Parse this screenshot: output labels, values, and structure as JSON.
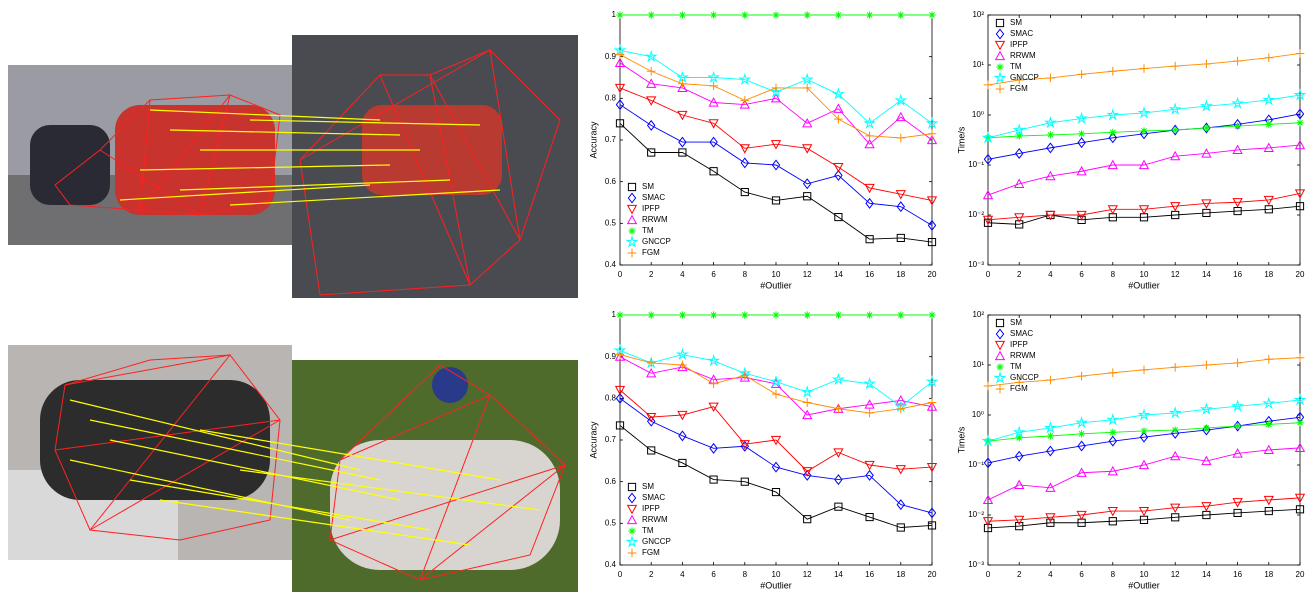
{
  "chart_data": [
    {
      "type": "line",
      "xlabel": "#Outlier",
      "ylabel": "Accuracy",
      "x": [
        0,
        2,
        4,
        6,
        8,
        10,
        12,
        14,
        16,
        18,
        20
      ],
      "xlim": [
        0,
        20
      ],
      "xticks": [
        0,
        2,
        4,
        6,
        8,
        10,
        12,
        14,
        16,
        18,
        20
      ],
      "ylim": [
        0.4,
        1
      ],
      "yticks": [
        0.4,
        0.5,
        0.6,
        0.7,
        0.8,
        0.9,
        1
      ],
      "log": false,
      "legend": "lower left",
      "series": [
        {
          "name": "SM",
          "color": "#000000",
          "marker": "square",
          "values": [
            0.74,
            0.67,
            0.67,
            0.625,
            0.575,
            0.555,
            0.565,
            0.515,
            0.462,
            0.465,
            0.455
          ]
        },
        {
          "name": "SMAC",
          "color": "#0000ff",
          "marker": "diamond",
          "values": [
            0.785,
            0.735,
            0.695,
            0.695,
            0.645,
            0.64,
            0.595,
            0.615,
            0.548,
            0.54,
            0.495
          ]
        },
        {
          "name": "IPFP",
          "color": "#ff0000",
          "marker": "triangle-down",
          "values": [
            0.825,
            0.795,
            0.76,
            0.74,
            0.68,
            0.69,
            0.68,
            0.635,
            0.585,
            0.57,
            0.555
          ]
        },
        {
          "name": "RRWM",
          "color": "#ff00ff",
          "marker": "triangle-up",
          "values": [
            0.885,
            0.835,
            0.825,
            0.79,
            0.785,
            0.8,
            0.74,
            0.775,
            0.69,
            0.755,
            0.7
          ]
        },
        {
          "name": "TM",
          "color": "#00ff00",
          "marker": "asterisk",
          "values": [
            1,
            1,
            1,
            1,
            1,
            1,
            1,
            1,
            1,
            1,
            1
          ]
        },
        {
          "name": "GNCCP",
          "color": "#00ffff",
          "marker": "star",
          "values": [
            0.915,
            0.9,
            0.85,
            0.85,
            0.845,
            0.815,
            0.845,
            0.81,
            0.74,
            0.795,
            0.74
          ]
        },
        {
          "name": "FGM",
          "color": "#ff8c00",
          "marker": "plus",
          "values": [
            0.905,
            0.865,
            0.835,
            0.83,
            0.795,
            0.825,
            0.825,
            0.75,
            0.71,
            0.705,
            0.715
          ]
        }
      ]
    },
    {
      "type": "line",
      "xlabel": "#Outlier",
      "ylabel": "Time/s",
      "x": [
        0,
        2,
        4,
        6,
        8,
        10,
        12,
        14,
        16,
        18,
        20
      ],
      "xlim": [
        0,
        20
      ],
      "xticks": [
        0,
        2,
        4,
        6,
        8,
        10,
        12,
        14,
        16,
        18,
        20
      ],
      "ylim": [
        0.001,
        100
      ],
      "yticks": [
        {
          "value": 0.001,
          "label": "10⁻³"
        },
        {
          "value": 0.01,
          "label": "10⁻²"
        },
        {
          "value": 0.1,
          "label": "10⁻¹"
        },
        {
          "value": 1,
          "label": "10⁰"
        },
        {
          "value": 10,
          "label": "10¹"
        },
        {
          "value": 100,
          "label": "10²"
        }
      ],
      "log": true,
      "legend": "upper left",
      "series": [
        {
          "name": "SM",
          "color": "#000000",
          "marker": "square",
          "values": [
            0.007,
            0.0065,
            0.01,
            0.008,
            0.009,
            0.009,
            0.01,
            0.011,
            0.012,
            0.013,
            0.015
          ]
        },
        {
          "name": "SMAC",
          "color": "#0000ff",
          "marker": "diamond",
          "values": [
            0.13,
            0.17,
            0.22,
            0.28,
            0.35,
            0.42,
            0.5,
            0.55,
            0.65,
            0.8,
            1.05
          ]
        },
        {
          "name": "IPFP",
          "color": "#ff0000",
          "marker": "triangle-down",
          "values": [
            0.008,
            0.009,
            0.01,
            0.01,
            0.013,
            0.013,
            0.015,
            0.017,
            0.018,
            0.02,
            0.027
          ]
        },
        {
          "name": "RRWM",
          "color": "#ff00ff",
          "marker": "triangle-up",
          "values": [
            0.025,
            0.042,
            0.06,
            0.075,
            0.1,
            0.1,
            0.15,
            0.17,
            0.2,
            0.22,
            0.25
          ]
        },
        {
          "name": "TM",
          "color": "#00ff00",
          "marker": "asterisk",
          "values": [
            0.35,
            0.38,
            0.4,
            0.42,
            0.45,
            0.48,
            0.5,
            0.55,
            0.6,
            0.65,
            0.7
          ]
        },
        {
          "name": "GNCCP",
          "color": "#00ffff",
          "marker": "star",
          "values": [
            0.35,
            0.5,
            0.7,
            0.85,
            1,
            1.1,
            1.3,
            1.5,
            1.7,
            2,
            2.5
          ]
        },
        {
          "name": "FGM",
          "color": "#ff8c00",
          "marker": "plus",
          "values": [
            4,
            5,
            5.5,
            6.5,
            7.5,
            8.5,
            9.5,
            10.5,
            12,
            14,
            17
          ]
        }
      ]
    },
    {
      "type": "line",
      "xlabel": "#Outlier",
      "ylabel": "Accuracy",
      "x": [
        0,
        2,
        4,
        6,
        8,
        10,
        12,
        14,
        16,
        18,
        20
      ],
      "xlim": [
        0,
        20
      ],
      "xticks": [
        0,
        2,
        4,
        6,
        8,
        10,
        12,
        14,
        16,
        18,
        20
      ],
      "ylim": [
        0.4,
        1
      ],
      "yticks": [
        0.4,
        0.5,
        0.6,
        0.7,
        0.8,
        0.9,
        1
      ],
      "log": false,
      "legend": "lower left",
      "series": [
        {
          "name": "SM",
          "color": "#000000",
          "marker": "square",
          "values": [
            0.735,
            0.675,
            0.645,
            0.605,
            0.6,
            0.575,
            0.51,
            0.54,
            0.515,
            0.49,
            0.495
          ]
        },
        {
          "name": "SMAC",
          "color": "#0000ff",
          "marker": "diamond",
          "values": [
            0.8,
            0.745,
            0.71,
            0.68,
            0.685,
            0.635,
            0.615,
            0.605,
            0.615,
            0.545,
            0.525
          ]
        },
        {
          "name": "IPFP",
          "color": "#ff0000",
          "marker": "triangle-down",
          "values": [
            0.82,
            0.755,
            0.76,
            0.78,
            0.69,
            0.7,
            0.625,
            0.67,
            0.64,
            0.63,
            0.635
          ]
        },
        {
          "name": "RRWM",
          "color": "#ff00ff",
          "marker": "triangle-up",
          "values": [
            0.9,
            0.86,
            0.875,
            0.845,
            0.85,
            0.835,
            0.76,
            0.775,
            0.785,
            0.795,
            0.78
          ]
        },
        {
          "name": "TM",
          "color": "#00ff00",
          "marker": "asterisk",
          "values": [
            1,
            1,
            1,
            1,
            1,
            1,
            1,
            1,
            1,
            1,
            1
          ]
        },
        {
          "name": "GNCCP",
          "color": "#00ffff",
          "marker": "star",
          "values": [
            0.915,
            0.885,
            0.905,
            0.89,
            0.86,
            0.84,
            0.815,
            0.845,
            0.835,
            0.78,
            0.84
          ]
        },
        {
          "name": "FGM",
          "color": "#ff8c00",
          "marker": "plus",
          "values": [
            0.905,
            0.885,
            0.88,
            0.835,
            0.855,
            0.81,
            0.79,
            0.775,
            0.765,
            0.775,
            0.79
          ]
        }
      ]
    },
    {
      "type": "line",
      "xlabel": "#Outlier",
      "ylabel": "Time/s",
      "x": [
        0,
        2,
        4,
        6,
        8,
        10,
        12,
        14,
        16,
        18,
        20
      ],
      "xlim": [
        0,
        20
      ],
      "xticks": [
        0,
        2,
        4,
        6,
        8,
        10,
        12,
        14,
        16,
        18,
        20
      ],
      "ylim": [
        0.001,
        100
      ],
      "yticks": [
        {
          "value": 0.001,
          "label": "10⁻³"
        },
        {
          "value": 0.01,
          "label": "10⁻²"
        },
        {
          "value": 0.1,
          "label": "10⁻¹"
        },
        {
          "value": 1,
          "label": "10⁰"
        },
        {
          "value": 10,
          "label": "10¹"
        },
        {
          "value": 100,
          "label": "10²"
        }
      ],
      "log": true,
      "legend": "upper left",
      "series": [
        {
          "name": "SM",
          "color": "#000000",
          "marker": "square",
          "values": [
            0.0055,
            0.006,
            0.007,
            0.007,
            0.0075,
            0.008,
            0.009,
            0.01,
            0.011,
            0.012,
            0.013
          ]
        },
        {
          "name": "SMAC",
          "color": "#0000ff",
          "marker": "diamond",
          "values": [
            0.11,
            0.15,
            0.19,
            0.24,
            0.3,
            0.36,
            0.43,
            0.5,
            0.6,
            0.75,
            0.9
          ]
        },
        {
          "name": "IPFP",
          "color": "#ff0000",
          "marker": "triangle-down",
          "values": [
            0.0075,
            0.008,
            0.009,
            0.01,
            0.012,
            0.012,
            0.014,
            0.015,
            0.018,
            0.02,
            0.022
          ]
        },
        {
          "name": "RRWM",
          "color": "#ff00ff",
          "marker": "triangle-up",
          "values": [
            0.02,
            0.04,
            0.035,
            0.07,
            0.075,
            0.1,
            0.15,
            0.12,
            0.17,
            0.2,
            0.22
          ]
        },
        {
          "name": "TM",
          "color": "#00ff00",
          "marker": "asterisk",
          "values": [
            0.3,
            0.35,
            0.38,
            0.42,
            0.45,
            0.48,
            0.5,
            0.55,
            0.6,
            0.65,
            0.7
          ]
        },
        {
          "name": "GNCCP",
          "color": "#00ffff",
          "marker": "star",
          "values": [
            0.3,
            0.45,
            0.55,
            0.7,
            0.8,
            1,
            1.1,
            1.3,
            1.5,
            1.7,
            2
          ]
        },
        {
          "name": "FGM",
          "color": "#ff8c00",
          "marker": "plus",
          "values": [
            3.8,
            4.5,
            5,
            6,
            7,
            8,
            9,
            10,
            11,
            13,
            14
          ]
        }
      ]
    }
  ]
}
